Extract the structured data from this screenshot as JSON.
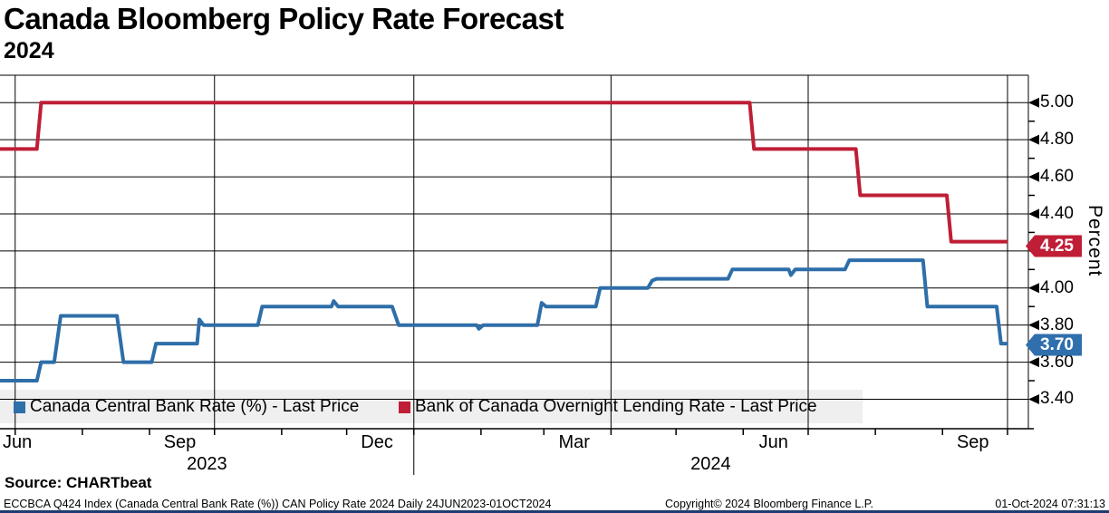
{
  "header": {
    "title": "Canada Bloomberg Policy Rate Forecast",
    "subtitle": "2024"
  },
  "legend": [
    {
      "label": "Canada Central Bank Rate (%) - Last Price",
      "color": "#2e6ea9"
    },
    {
      "label": "Bank of Canada Overnight Lending Rate - Last Price",
      "color": "#bf1e36"
    }
  ],
  "badges": {
    "overnight_rate_last": {
      "value": "4.25",
      "color": "#bf1e36"
    },
    "forecast_last": {
      "value": "3.70",
      "color": "#2f6fad"
    }
  },
  "axes": {
    "y_title": "Percent"
  },
  "source": {
    "label": "Source: CHARTbeat"
  },
  "footer": {
    "left": "ECCBCA Q424 Index (Canada Central Bank Rate (%)) CAN Policy Rate 2024  Daily 24JUN2023-01OCT2024",
    "center": "Copyright© 2024 Bloomberg Finance L.P.",
    "right": "01-Oct-2024 07:31:13"
  },
  "chart_data": {
    "type": "line",
    "title": "Canada Bloomberg Policy Rate Forecast",
    "subtitle": "2024",
    "ylabel": "Percent",
    "grid": true,
    "legend_position": "bottom-left-inside",
    "x_domain": [
      "2023-06-24",
      "2024-10-01"
    ],
    "ylim": [
      3.241,
      5.148
    ],
    "y_ticks_major": [
      5.0,
      4.8,
      4.6,
      4.4,
      4.2,
      4.0,
      3.8,
      3.6,
      3.4
    ],
    "y_ticks_minor": [
      4.9,
      4.7,
      4.5,
      4.3,
      4.1,
      3.9,
      3.7,
      3.5
    ],
    "x_gridline_dates": [
      "2023-07-01",
      "2023-10-01",
      "2024-01-01",
      "2024-04-01",
      "2024-07-01",
      "2024-10-01"
    ],
    "x_month_tick_dates": [
      "2023-07-01",
      "2023-08-01",
      "2023-09-01",
      "2023-10-01",
      "2023-11-01",
      "2023-12-01",
      "2024-01-01",
      "2024-02-01",
      "2024-03-01",
      "2024-04-01",
      "2024-05-01",
      "2024-06-01",
      "2024-07-01",
      "2024-08-01",
      "2024-09-01",
      "2024-10-01"
    ],
    "x_month_labels": [
      {
        "label": "Jun",
        "center_date": "2023-07-02"
      },
      {
        "label": "Sep",
        "center_date": "2023-09-15"
      },
      {
        "label": "Dec",
        "center_date": "2023-12-15"
      },
      {
        "label": "Mar",
        "center_date": "2024-03-15"
      },
      {
        "label": "Jun",
        "center_date": "2024-06-15"
      },
      {
        "label": "Sep",
        "center_date": "2024-09-15"
      }
    ],
    "x_year_labels": [
      {
        "label": "2023",
        "span": [
          "2023-06-24",
          "2024-01-01"
        ]
      },
      {
        "label": "2024",
        "span": [
          "2024-01-01",
          "2024-10-01"
        ]
      }
    ],
    "year_separator_date": "2024-01-01",
    "series": [
      {
        "name": "Canada Central Bank Rate (%) - Last Price",
        "color": "#2e6ea9",
        "last_value": 3.7,
        "points": [
          [
            "2023-06-24",
            3.5
          ],
          [
            "2023-07-11",
            3.5
          ],
          [
            "2023-07-13",
            3.6
          ],
          [
            "2023-07-19",
            3.6
          ],
          [
            "2023-07-22",
            3.85
          ],
          [
            "2023-08-17",
            3.85
          ],
          [
            "2023-08-20",
            3.6
          ],
          [
            "2023-09-02",
            3.6
          ],
          [
            "2023-09-04",
            3.7
          ],
          [
            "2023-09-23",
            3.7
          ],
          [
            "2023-09-24",
            3.83
          ],
          [
            "2023-09-26",
            3.8
          ],
          [
            "2023-10-21",
            3.8
          ],
          [
            "2023-10-23",
            3.9
          ],
          [
            "2023-11-24",
            3.9
          ],
          [
            "2023-11-25",
            3.93
          ],
          [
            "2023-11-27",
            3.9
          ],
          [
            "2023-12-22",
            3.9
          ],
          [
            "2023-12-25",
            3.8
          ],
          [
            "2024-01-30",
            3.8
          ],
          [
            "2024-01-31",
            3.78
          ],
          [
            "2024-02-02",
            3.8
          ],
          [
            "2024-02-27",
            3.8
          ],
          [
            "2024-02-29",
            3.92
          ],
          [
            "2024-03-02",
            3.9
          ],
          [
            "2024-03-25",
            3.9
          ],
          [
            "2024-03-27",
            4.0
          ],
          [
            "2024-04-18",
            4.0
          ],
          [
            "2024-04-20",
            4.04
          ],
          [
            "2024-04-22",
            4.05
          ],
          [
            "2024-05-25",
            4.05
          ],
          [
            "2024-05-27",
            4.1
          ],
          [
            "2024-06-22",
            4.1
          ],
          [
            "2024-06-23",
            4.07
          ],
          [
            "2024-06-25",
            4.1
          ],
          [
            "2024-07-18",
            4.1
          ],
          [
            "2024-07-20",
            4.15
          ],
          [
            "2024-08-23",
            4.15
          ],
          [
            "2024-08-25",
            3.9
          ],
          [
            "2024-09-26",
            3.9
          ],
          [
            "2024-09-28",
            3.7
          ],
          [
            "2024-10-01",
            3.7
          ]
        ]
      },
      {
        "name": "Bank of Canada Overnight Lending Rate - Last Price",
        "color": "#bf1e36",
        "last_value": 4.25,
        "points": [
          [
            "2023-06-24",
            4.75
          ],
          [
            "2023-07-11",
            4.75
          ],
          [
            "2023-07-13",
            5.0
          ],
          [
            "2024-06-04",
            5.0
          ],
          [
            "2024-06-06",
            4.75
          ],
          [
            "2024-07-23",
            4.75
          ],
          [
            "2024-07-25",
            4.5
          ],
          [
            "2024-09-03",
            4.5
          ],
          [
            "2024-09-05",
            4.25
          ],
          [
            "2024-10-01",
            4.25
          ]
        ]
      }
    ]
  }
}
